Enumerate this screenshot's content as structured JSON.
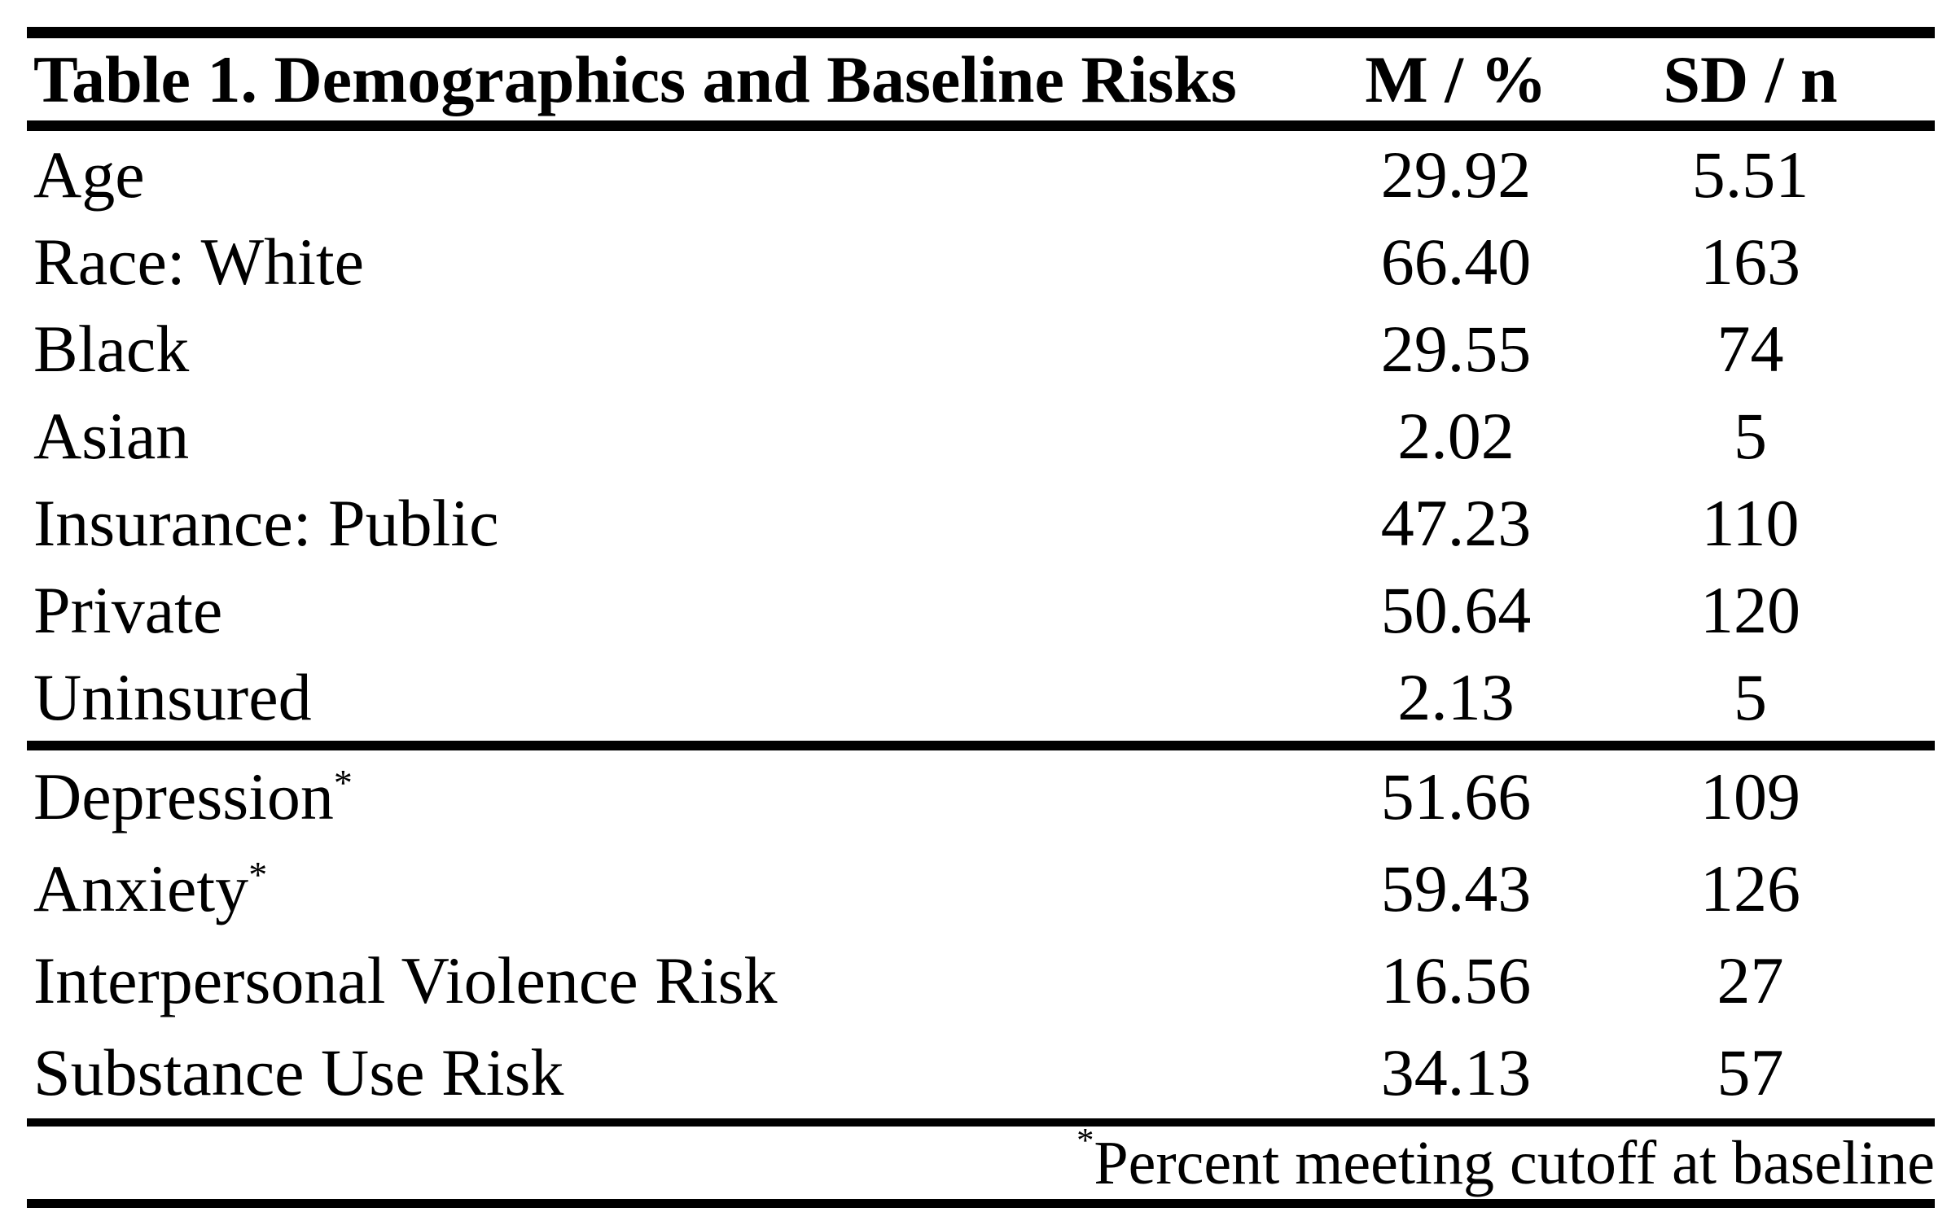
{
  "table": {
    "title": "Table 1. Demographics and Baseline Risks",
    "columns": [
      "M / %",
      "SD / n"
    ],
    "sections": [
      {
        "name": "demographics",
        "rows": [
          {
            "label": "Age",
            "indent": 0,
            "sup": "",
            "m": "29.92",
            "sd": "5.51"
          },
          {
            "label": "Race: White",
            "indent": 0,
            "sup": "",
            "m": "66.40",
            "sd": "163"
          },
          {
            "label": "Black",
            "indent": 1,
            "sup": "",
            "m": "29.55",
            "sd": "74"
          },
          {
            "label": "Asian",
            "indent": 1,
            "sup": "",
            "m": "2.02",
            "sd": "5"
          },
          {
            "label": "Insurance: Public",
            "indent": 0,
            "sup": "",
            "m": "47.23",
            "sd": "110"
          },
          {
            "label": "Private",
            "indent": 2,
            "sup": "",
            "m": "50.64",
            "sd": "120"
          },
          {
            "label": "Uninsured",
            "indent": 2,
            "sup": "",
            "m": "2.13",
            "sd": "5"
          }
        ]
      },
      {
        "name": "baseline-risks",
        "rows": [
          {
            "label": "Depression",
            "indent": 0,
            "sup": "*",
            "m": "51.66",
            "sd": "109"
          },
          {
            "label": "Anxiety",
            "indent": 0,
            "sup": "*",
            "m": "59.43",
            "sd": "126"
          },
          {
            "label": "Interpersonal Violence Risk",
            "indent": 0,
            "sup": "",
            "m": "16.56",
            "sd": "27"
          },
          {
            "label": "Substance Use Risk",
            "indent": 0,
            "sup": "",
            "m": "34.13",
            "sd": "57"
          }
        ]
      }
    ],
    "footnote": {
      "marker": "*",
      "text": "Percent meeting cutoff at baseline"
    }
  }
}
